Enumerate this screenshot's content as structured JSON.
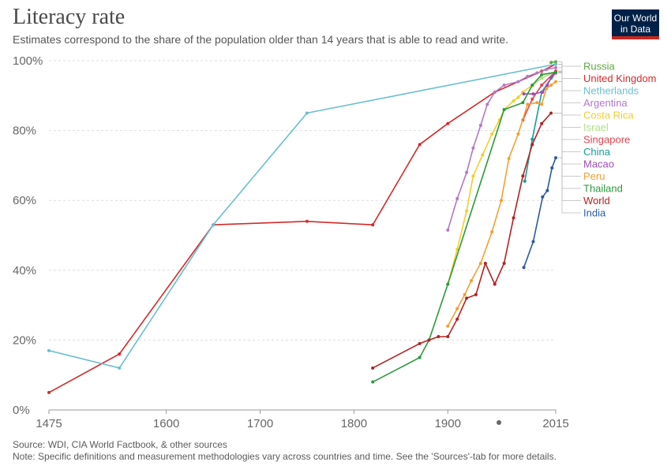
{
  "header": {
    "title": "Literacy rate",
    "subtitle": "Estimates correspond to the share of the population older than 14 years that is able to read and write.",
    "logo_line1": "Our World",
    "logo_line2": "in Data"
  },
  "footer": {
    "source": "Source: WDI, CIA World Factbook, & other sources",
    "note": "Note: Specific definitions and measurement methodologies vary across countries and time. See the 'Sources'-tab for more details."
  },
  "chart_data": {
    "type": "line",
    "title": "Literacy rate",
    "xlabel": "",
    "ylabel": "",
    "xlim": [
      1475,
      2015
    ],
    "ylim": [
      0,
      100
    ],
    "x_ticks": [
      1475,
      1600,
      1700,
      1800,
      1900,
      2015
    ],
    "y_ticks": [
      0,
      20,
      40,
      60,
      80,
      100
    ],
    "y_tick_labels": [
      "0%",
      "20%",
      "40%",
      "60%",
      "80%",
      "100%"
    ],
    "grid": "horizontal dotted",
    "legend": "right, labels at line ends",
    "series": [
      {
        "name": "Russia",
        "color": "#60a847",
        "points": [
          [
            2010,
            99.5
          ],
          [
            2015,
            99.7
          ]
        ]
      },
      {
        "name": "United Kingdom",
        "color": "#d32a2a",
        "points": [
          [
            1475,
            5
          ],
          [
            1550,
            16
          ],
          [
            1650,
            53
          ],
          [
            1750,
            54
          ],
          [
            1820,
            53
          ],
          [
            1870,
            76
          ],
          [
            1900,
            82
          ],
          [
            1950,
            91
          ],
          [
            2000,
            97
          ],
          [
            2015,
            99
          ]
        ]
      },
      {
        "name": "Netherlands",
        "color": "#69bfcc",
        "points": [
          [
            1475,
            17
          ],
          [
            1550,
            12
          ],
          [
            1650,
            53
          ],
          [
            1750,
            85
          ],
          [
            2015,
            99
          ]
        ]
      },
      {
        "name": "Argentina",
        "color": "#b178c8",
        "points": [
          [
            1900,
            51.5
          ],
          [
            1910,
            60.5
          ],
          [
            1920,
            68
          ],
          [
            1927,
            75
          ],
          [
            1935,
            81.5
          ],
          [
            1942,
            87.5
          ],
          [
            1950,
            91
          ],
          [
            1960,
            93
          ],
          [
            1975,
            94
          ],
          [
            1985,
            95.5
          ],
          [
            1995,
            96.5
          ],
          [
            2005,
            97.5
          ],
          [
            2015,
            98
          ]
        ]
      },
      {
        "name": "Costa Rica",
        "color": "#f2ce2b",
        "points": [
          [
            1900,
            36
          ],
          [
            1910,
            46
          ],
          [
            1920,
            57
          ],
          [
            1927,
            67
          ],
          [
            1937,
            73
          ],
          [
            1947,
            79
          ],
          [
            1955,
            83
          ],
          [
            1960,
            86
          ],
          [
            1970,
            88.5
          ],
          [
            1975,
            89.5
          ],
          [
            1980,
            91
          ],
          [
            1990,
            93
          ],
          [
            2000,
            95
          ],
          [
            2015,
            97
          ]
        ]
      },
      {
        "name": "Israel",
        "color": "#aee08a",
        "points": [
          [
            1990,
            93
          ],
          [
            2000,
            95
          ],
          [
            2015,
            97
          ]
        ]
      },
      {
        "name": "Singapore",
        "color": "#e0434f",
        "points": [
          [
            1980,
            83
          ],
          [
            1990,
            89
          ],
          [
            2000,
            93
          ],
          [
            2015,
            97
          ]
        ]
      },
      {
        "name": "China",
        "color": "#1a9b95",
        "points": [
          [
            1982,
            65.5
          ],
          [
            1990,
            77.5
          ],
          [
            2000,
            91
          ],
          [
            2010,
            95
          ],
          [
            2015,
            96.5
          ]
        ]
      },
      {
        "name": "Macao",
        "color": "#9a4fb3",
        "points": [
          [
            1981,
            90.5
          ],
          [
            1991,
            90.5
          ],
          [
            2001,
            91
          ],
          [
            2006,
            93
          ],
          [
            2011,
            95.5
          ],
          [
            2015,
            96.5
          ]
        ]
      },
      {
        "name": "Peru",
        "color": "#f0a032",
        "points": [
          [
            1900,
            24
          ],
          [
            1910,
            29
          ],
          [
            1918,
            33
          ],
          [
            1925,
            37
          ],
          [
            1935,
            42
          ],
          [
            1947,
            51
          ],
          [
            1957,
            60
          ],
          [
            1965,
            72
          ],
          [
            1975,
            79
          ],
          [
            1985,
            87.5
          ],
          [
            1995,
            88
          ],
          [
            2000,
            87.5
          ],
          [
            2005,
            92
          ],
          [
            2010,
            93
          ],
          [
            2015,
            94
          ]
        ]
      },
      {
        "name": "Thailand",
        "color": "#2a9a3a",
        "points": [
          [
            1820,
            8
          ],
          [
            1870,
            15
          ],
          [
            1880,
            20
          ],
          [
            1900,
            36
          ],
          [
            1960,
            86
          ],
          [
            1980,
            88
          ],
          [
            1990,
            93
          ],
          [
            2000,
            96
          ],
          [
            2015,
            96.7
          ]
        ]
      },
      {
        "name": "World",
        "color": "#b22222",
        "points": [
          [
            1820,
            12
          ],
          [
            1870,
            19
          ],
          [
            1880,
            20
          ],
          [
            1890,
            21
          ],
          [
            1900,
            21
          ],
          [
            1910,
            26
          ],
          [
            1920,
            32
          ],
          [
            1930,
            33
          ],
          [
            1940,
            42
          ],
          [
            1950,
            36
          ],
          [
            1960,
            42
          ],
          [
            1970,
            55
          ],
          [
            1980,
            67
          ],
          [
            1990,
            76
          ],
          [
            2000,
            82
          ],
          [
            2010,
            85
          ]
        ]
      },
      {
        "name": "India",
        "color": "#2a5a9e",
        "points": [
          [
            1981,
            40.8
          ],
          [
            1991,
            48.2
          ],
          [
            2001,
            61
          ],
          [
            2006,
            62.8
          ],
          [
            2011,
            69.3
          ],
          [
            2015,
            72.2
          ]
        ]
      }
    ]
  }
}
